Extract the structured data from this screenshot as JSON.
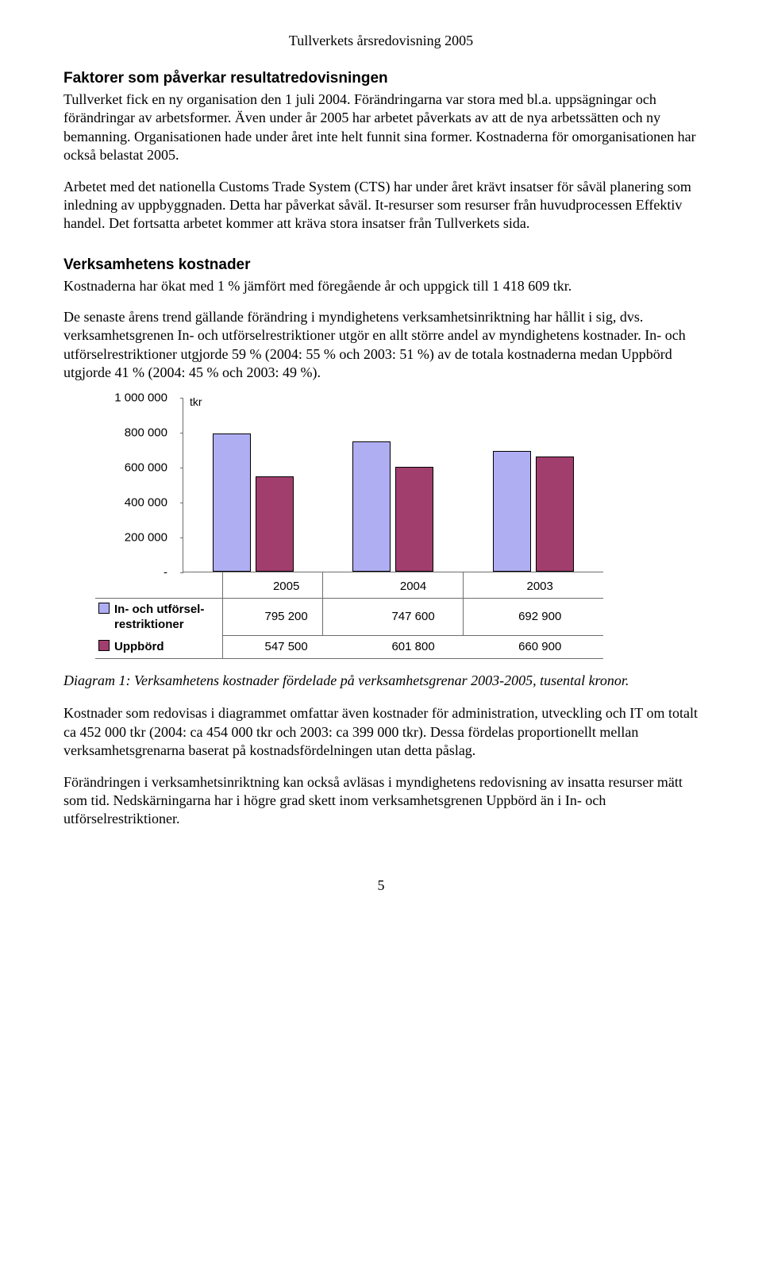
{
  "doc_title": "Tullverkets årsredovisning 2005",
  "section1_heading": "Faktorer som påverkar resultatredovisningen",
  "section1_p1": "Tullverket fick en ny organisation den 1 juli 2004. Förändringarna var stora med bl.a. uppsägningar och förändringar av arbetsformer. Även under år 2005 har arbetet påverkats av att de nya arbetssätten och ny bemanning. Organisationen hade under året inte helt funnit sina former. Kostnaderna för omorganisationen har också belastat 2005.",
  "section1_p2": "Arbetet med det nationella Customs Trade System (CTS) har under året krävt insatser för såväl planering som inledning av uppbyggnaden. Detta har påverkat såväl. It-resurser som resurser från huvudprocessen Effektiv handel. Det fortsatta arbetet kommer att kräva stora insatser från Tullverkets sida.",
  "section2_heading": "Verksamhetens kostnader",
  "section2_p1": "Kostnaderna har ökat med 1 % jämfört med föregående år och uppgick till 1 418 609 tkr.",
  "section2_p2": "De senaste årens trend gällande förändring i myndighetens verksamhetsinriktning har hållit i sig, dvs. verksamhetsgrenen In- och utförselrestriktioner utgör en allt större andel av myndighetens kostnader. In- och utförselrestriktioner utgjorde 59 % (2004: 55 % och 2003: 51 %) av de totala kostnaderna medan Uppbörd utgjorde 41 % (2004: 45 % och 2003: 49 %).",
  "chart": {
    "unit_label": "tkr",
    "ymax": 1000000,
    "yticks": [
      {
        "value": 1000000,
        "label": "1 000 000"
      },
      {
        "value": 800000,
        "label": "800 000"
      },
      {
        "value": 600000,
        "label": "600 000"
      },
      {
        "value": 400000,
        "label": "400 000"
      },
      {
        "value": 200000,
        "label": "200 000"
      },
      {
        "value": 0,
        "label": "-"
      }
    ],
    "years": [
      "2005",
      "2004",
      "2003"
    ],
    "series": [
      {
        "name": "In- och utförsel-restriktioner",
        "color": "#b0aef3",
        "values": [
          795200,
          747600,
          692900
        ],
        "display": [
          "795 200",
          "747 600",
          "692 900"
        ]
      },
      {
        "name": "Uppbörd",
        "color": "#a23e6e",
        "values": [
          547500,
          601800,
          660900
        ],
        "display": [
          "547 500",
          "601 800",
          "660 900"
        ]
      }
    ],
    "series0_line1": "In- och utförsel-",
    "series0_line2": "restriktioner"
  },
  "caption": "Diagram 1: Verksamhetens kostnader fördelade på verksamhetsgrenar 2003-2005, tusental kronor.",
  "section3_p1": "Kostnader som redovisas i diagrammet omfattar även kostnader för administration, utveckling och IT om totalt ca 452 000 tkr (2004: ca 454 000 tkr och 2003: ca 399 000 tkr). Dessa fördelas proportionellt mellan verksamhetsgrenarna baserat på kostnadsfördelningen utan detta påslag.",
  "section3_p2": "Förändringen i verksamhetsinriktning kan också avläsas i myndighetens redovisning av insatta resurser mätt som tid. Nedskärningarna har i högre grad skett inom verksamhetsgrenen Uppbörd än i In- och utförselrestriktioner.",
  "page_number": "5"
}
